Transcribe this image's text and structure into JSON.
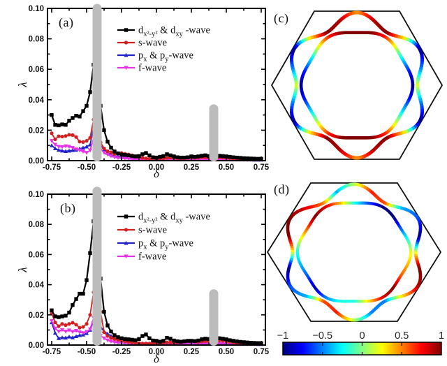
{
  "figure": {
    "background": "#ffffff"
  },
  "panel_labels": {
    "a": "(a)",
    "b": "(b)",
    "c": "(c)",
    "d": "(d)"
  },
  "colors": {
    "d_wave": "#000000",
    "s_wave": "#d02020",
    "p_wave": "#2123c8",
    "f_wave": "#e632e6",
    "gray_bar": "#bcbcbc",
    "axis": "#000000",
    "hexagon": "#111111"
  },
  "chart_data": [
    {
      "type": "line",
      "panel": "a",
      "panel_label": "(a)",
      "xlabel": "δ",
      "ylabel": "λ",
      "xlim": [
        -0.78,
        0.78
      ],
      "ylim": [
        0,
        0.1
      ],
      "xticks": [
        -0.75,
        -0.5,
        -0.25,
        0,
        0.25,
        0.5,
        0.75
      ],
      "yticks": [
        0,
        0.02,
        0.04,
        0.06,
        0.08,
        0.1
      ],
      "x_start": -0.75,
      "x_step": 0.025,
      "grid": false,
      "legend_position": "upper-right-inside",
      "series": [
        {
          "key": "d_wave",
          "name": "dx²-y² & dxy -wave",
          "marker": "square",
          "label_tokens": [
            [
              "d",
              "n"
            ],
            [
              "x²-y²",
              "s"
            ],
            [
              " & d",
              "n"
            ],
            [
              "xy",
              "s"
            ],
            [
              " -wave",
              "n"
            ]
          ],
          "values": [
            0.03,
            0.0235,
            0.0232,
            0.0238,
            0.0235,
            0.0262,
            0.028,
            0.0295,
            0.029,
            0.0325,
            0.036,
            0.045,
            0.063,
            0.095,
            0.036,
            0.02,
            0.0125,
            0.0085,
            0.006,
            0.0048,
            0.004,
            0.0038,
            0.0035,
            0.003,
            0.0028,
            0.003,
            0.0042,
            0.005,
            0.0035,
            0.0022,
            0.002,
            0.0025,
            0.003,
            0.0042,
            0.0035,
            0.0028,
            0.0022,
            0.002,
            0.002,
            0.0022,
            0.0028,
            0.0025,
            0.0028,
            0.0032,
            0.0035,
            0.003,
            0.0028,
            0.003,
            0.0032,
            0.003,
            0.0028,
            0.0025,
            0.0022,
            0.002,
            0.0018,
            0.0016,
            0.0015,
            0.0014,
            0.0013,
            0.0012,
            0.0012
          ]
        },
        {
          "key": "s_wave",
          "name": "s-wave",
          "marker": "circle",
          "label_tokens": [
            [
              "s-wave",
              "n"
            ]
          ],
          "values": [
            0.018,
            0.014,
            0.016,
            0.0158,
            0.0162,
            0.017,
            0.0168,
            0.0155,
            0.0125,
            0.0122,
            0.013,
            0.015,
            0.027,
            0.03,
            0.012,
            0.008,
            0.0062,
            0.0055,
            0.0045,
            0.0048,
            0.005,
            0.0045,
            0.004,
            0.0035,
            0.0028,
            0.0022,
            0.0018,
            0.0015,
            0.0012,
            0.001,
            0.001,
            0.0012,
            0.0015,
            0.0018,
            0.002,
            0.0018,
            0.0015,
            0.0013,
            0.0015,
            0.0018,
            0.002,
            0.0018,
            0.002,
            0.0022,
            0.0022,
            0.002,
            0.0018,
            0.002,
            0.0022,
            0.002,
            0.0018,
            0.0016,
            0.0014,
            0.0013,
            0.0012,
            0.0011,
            0.001,
            0.001,
            0.0009,
            0.0009,
            0.0008
          ]
        },
        {
          "key": "p_wave",
          "name": "px & py-wave",
          "marker": "triangle-up",
          "label_tokens": [
            [
              "p",
              "n"
            ],
            [
              "x",
              "s"
            ],
            [
              " & p",
              "n"
            ],
            [
              "y",
              "s"
            ],
            [
              "-wave",
              "n"
            ]
          ],
          "values": [
            0.01,
            0.008,
            0.007,
            0.0065,
            0.0062,
            0.0065,
            0.0068,
            0.007,
            0.0078,
            0.0085,
            0.0092,
            0.0105,
            0.022,
            0.023,
            0.01,
            0.007,
            0.005,
            0.004,
            0.0032,
            0.0028,
            0.0025,
            0.0022,
            0.002,
            0.0018,
            0.0015,
            0.0012,
            0.001,
            0.0009,
            0.0008,
            0.0008,
            0.0008,
            0.0009,
            0.001,
            0.0012,
            0.0012,
            0.001,
            0.0009,
            0.0009,
            0.001,
            0.0011,
            0.0012,
            0.0011,
            0.001,
            0.001,
            0.0011,
            0.001,
            0.001,
            0.001,
            0.001,
            0.001,
            0.0009,
            0.0009,
            0.0008,
            0.0008,
            0.0008,
            0.0007,
            0.0007,
            0.0007,
            0.0006,
            0.0006,
            0.0006
          ]
        },
        {
          "key": "f_wave",
          "name": "f-wave",
          "marker": "triangle-down",
          "label_tokens": [
            [
              "f-wave",
              "n"
            ]
          ],
          "values": [
            0.013,
            0.0105,
            0.0092,
            0.009,
            0.0095,
            0.0092,
            0.0085,
            0.0075,
            0.0068,
            0.006,
            0.0052,
            0.0068,
            0.015,
            0.016,
            0.008,
            0.0052,
            0.004,
            0.003,
            0.0022,
            0.0018,
            0.0015,
            0.0013,
            0.0012,
            0.001,
            0.0009,
            0.0008,
            0.0008,
            0.0007,
            0.0007,
            0.0006,
            0.0006,
            0.0007,
            0.0008,
            0.0009,
            0.0009,
            0.0008,
            0.0007,
            0.0007,
            0.0008,
            0.0008,
            0.0009,
            0.0008,
            0.0008,
            0.0008,
            0.0008,
            0.0008,
            0.0007,
            0.0007,
            0.0008,
            0.0007,
            0.0007,
            0.0007,
            0.0006,
            0.0006,
            0.0006,
            0.0006,
            0.0005,
            0.0005,
            0.0005,
            0.0005,
            0.0005
          ]
        }
      ],
      "gray_bars": [
        {
          "x": -0.425,
          "y_top": 0.103,
          "y_bottom": 0.0
        },
        {
          "x": 0.41,
          "y_top": 0.037,
          "y_bottom": 0.0
        }
      ]
    },
    {
      "type": "line",
      "panel": "b",
      "panel_label": "(b)",
      "xlabel": "δ",
      "ylabel": "λ",
      "xlim": [
        -0.78,
        0.78
      ],
      "ylim": [
        0,
        0.1
      ],
      "xticks": [
        -0.75,
        -0.5,
        -0.25,
        0,
        0.25,
        0.5,
        0.75
      ],
      "yticks": [
        0,
        0.02,
        0.04,
        0.06,
        0.08,
        0.1
      ],
      "x_start": -0.75,
      "x_step": 0.025,
      "grid": false,
      "legend_position": "upper-right-inside",
      "series": [
        {
          "key": "d_wave",
          "name": "dx²-y² & dxy -wave",
          "marker": "square",
          "label_tokens": [
            [
              "d",
              "n"
            ],
            [
              "x²-y²",
              "s"
            ],
            [
              " & d",
              "n"
            ],
            [
              "xy",
              "s"
            ],
            [
              " -wave",
              "n"
            ]
          ],
          "values": [
            0.023,
            0.019,
            0.0185,
            0.019,
            0.0195,
            0.0215,
            0.0265,
            0.0305,
            0.034,
            0.034,
            0.043,
            0.061,
            0.082,
            0.098,
            0.044,
            0.022,
            0.013,
            0.009,
            0.0065,
            0.0052,
            0.0045,
            0.004,
            0.0038,
            0.0035,
            0.0032,
            0.004,
            0.006,
            0.007,
            0.0045,
            0.003,
            0.0028,
            0.0022,
            0.0028,
            0.0048,
            0.0042,
            0.003,
            0.0025,
            0.0022,
            0.0025,
            0.0028,
            0.0028,
            0.0026,
            0.003,
            0.0038,
            0.0042,
            0.004,
            0.0038,
            0.004,
            0.0045,
            0.0042,
            0.0038,
            0.0032,
            0.0028,
            0.0024,
            0.0021,
            0.0019,
            0.0017,
            0.0015,
            0.0014,
            0.0013,
            0.0012
          ]
        },
        {
          "key": "s_wave",
          "name": "s-wave",
          "marker": "circle",
          "label_tokens": [
            [
              "s-wave",
              "n"
            ]
          ],
          "values": [
            0.021,
            0.015,
            0.0125,
            0.014,
            0.0132,
            0.014,
            0.0148,
            0.0135,
            0.0115,
            0.012,
            0.014,
            0.02,
            0.035,
            0.038,
            0.022,
            0.0085,
            0.006,
            0.0048,
            0.004,
            0.0035,
            0.003,
            0.0025,
            0.0022,
            0.0018,
            0.0015,
            0.0012,
            0.001,
            0.001,
            0.001,
            0.001,
            0.001,
            0.0012,
            0.0015,
            0.0018,
            0.0018,
            0.0016,
            0.0018,
            0.002,
            0.0024,
            0.0026,
            0.0026,
            0.0024,
            0.0022,
            0.0024,
            0.0026,
            0.0025,
            0.0024,
            0.0026,
            0.003,
            0.0028,
            0.0026,
            0.0022,
            0.0018,
            0.0015,
            0.0013,
            0.0012,
            0.0011,
            0.001,
            0.001,
            0.0009,
            0.0009
          ]
        },
        {
          "key": "p_wave",
          "name": "px & py-wave",
          "marker": "triangle-up",
          "label_tokens": [
            [
              "p",
              "n"
            ],
            [
              "x",
              "s"
            ],
            [
              " & p",
              "n"
            ],
            [
              "y",
              "s"
            ],
            [
              "-wave",
              "n"
            ]
          ],
          "values": [
            0.015,
            0.008,
            0.0045,
            0.005,
            0.0048,
            0.0055,
            0.005,
            0.0058,
            0.0065,
            0.0068,
            0.0078,
            0.01,
            0.0165,
            0.018,
            0.012,
            0.009,
            0.0075,
            0.006,
            0.0048,
            0.0038,
            0.003,
            0.0025,
            0.002,
            0.0016,
            0.0013,
            0.0011,
            0.001,
            0.001,
            0.0009,
            0.0009,
            0.0009,
            0.001,
            0.0012,
            0.0014,
            0.0015,
            0.0014,
            0.0015,
            0.0016,
            0.0018,
            0.002,
            0.002,
            0.0018,
            0.0016,
            0.0015,
            0.0014,
            0.0013,
            0.0012,
            0.0012,
            0.0012,
            0.0011,
            0.001,
            0.001,
            0.0009,
            0.0009,
            0.0008,
            0.0008,
            0.0007,
            0.0007,
            0.0007,
            0.0006,
            0.0006
          ]
        },
        {
          "key": "f_wave",
          "name": "f-wave",
          "marker": "triangle-down",
          "label_tokens": [
            [
              "f-wave",
              "n"
            ]
          ],
          "values": [
            0.016,
            0.011,
            0.009,
            0.01,
            0.009,
            0.0098,
            0.0088,
            0.0095,
            0.0085,
            0.008,
            0.0088,
            0.0105,
            0.018,
            0.019,
            0.0062,
            0.0045,
            0.0032,
            0.0024,
            0.0018,
            0.0015,
            0.0013,
            0.0011,
            0.001,
            0.0009,
            0.0008,
            0.0008,
            0.0007,
            0.0007,
            0.0007,
            0.0006,
            0.0006,
            0.0007,
            0.0008,
            0.0009,
            0.0009,
            0.0008,
            0.0008,
            0.0008,
            0.0009,
            0.0009,
            0.0009,
            0.0008,
            0.0008,
            0.0008,
            0.0008,
            0.0008,
            0.0007,
            0.0007,
            0.0007,
            0.0007,
            0.0006,
            0.0006,
            0.0006,
            0.0006,
            0.0005,
            0.0005,
            0.0005,
            0.0005,
            0.0005,
            0.0005,
            0.0005
          ]
        }
      ],
      "gray_bars": [
        {
          "x": -0.425,
          "y_top": 0.105,
          "y_bottom": 0.0
        },
        {
          "x": 0.41,
          "y_top": 0.037,
          "y_bottom": 0.0
        }
      ]
    },
    {
      "type": "fermi-surface",
      "panel": "c",
      "panel_label": "(c)",
      "boundary": "hexagon",
      "value_range": [
        -1,
        1
      ],
      "angle_step_deg": 15,
      "contours": [
        {
          "name": "outer",
          "values": [
            0.2,
            -0.5,
            -1,
            0.3,
            1,
            0.9,
            0.45,
            0.9,
            1,
            0.3,
            -1,
            -0.5,
            0.2,
            -0.5,
            -1,
            0.3,
            1,
            0.9,
            0.45,
            0.9,
            1,
            0.3,
            -1,
            -0.5
          ]
        },
        {
          "name": "inner",
          "values": [
            -1,
            -0.7,
            -0.3,
            0.2,
            0.7,
            1,
            1,
            1,
            0.7,
            0.2,
            -0.3,
            -0.7,
            -1,
            -0.7,
            -0.3,
            0.2,
            0.7,
            1,
            1,
            1,
            0.7,
            0.2,
            -0.3,
            -0.7
          ]
        }
      ]
    },
    {
      "type": "fermi-surface",
      "panel": "d",
      "panel_label": "(d)",
      "boundary": "hexagon",
      "value_range": [
        -1,
        1
      ],
      "angle_step_deg": 15,
      "contours": [
        {
          "name": "outer",
          "values": [
            0.2,
            -1,
            -0.6,
            -0.4,
            0.6,
            0.7,
            0.1,
            -0.4,
            0.5,
            0.8,
            1,
            1,
            0.2,
            -1,
            -0.6,
            -0.4,
            0.6,
            0.7,
            0.1,
            -0.5,
            -0.5,
            0.3,
            0.9,
            1
          ]
        },
        {
          "name": "inner",
          "values": [
            0.2,
            -0.2,
            -0.6,
            -1,
            -1,
            -0.6,
            -0.2,
            0.4,
            0.8,
            1,
            0.6,
            0.2,
            -0.2,
            -0.4,
            -0.6,
            -0.9,
            -0.5,
            -0.2,
            -0.2,
            0.3,
            0.8,
            1,
            0.6,
            0.4
          ]
        }
      ]
    },
    {
      "type": "colorbar",
      "orientation": "horizontal",
      "cmap": "jet",
      "range": [
        -1,
        1
      ],
      "ticks": [
        -1,
        -0.5,
        0,
        0.5,
        1
      ],
      "tick_labels": [
        "−1",
        "−0.5",
        "0",
        "0.5",
        "1"
      ]
    }
  ]
}
